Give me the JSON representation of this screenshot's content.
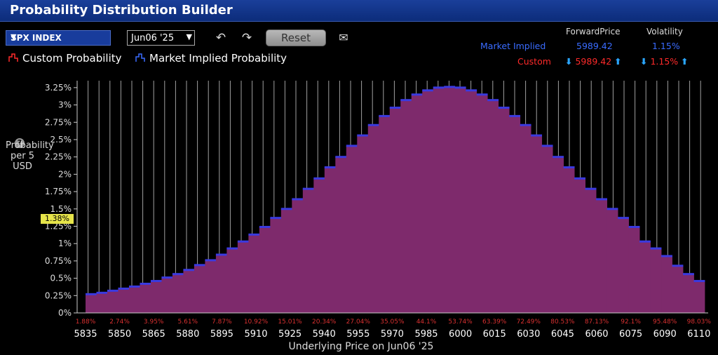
{
  "window": {
    "title": "Probability Distribution Builder"
  },
  "toolbar": {
    "symbol": "SPX INDEX",
    "expiry": "Jun06 '25",
    "reset_label": "Reset"
  },
  "legend": {
    "custom": "Custom Probability",
    "market": "Market Implied Probability"
  },
  "stats": {
    "col_forward": "ForwardPrice",
    "col_vol": "Volatility",
    "market_label": "Market Implied",
    "market_forward": "5989.42",
    "market_vol": "1.15%",
    "custom_label": "Custom",
    "custom_forward": "5989.42",
    "custom_vol": "1.15%"
  },
  "y_axis": {
    "label_line1": "Probability",
    "label_line2": "per 5 USD",
    "marker": "1.38%"
  },
  "colors": {
    "bar": "#7e2a6c",
    "bar_edge": "#9a3a86",
    "cap": "#3a3ae0",
    "grid": "#a0a0a0",
    "cumul": "#d83030"
  },
  "chart_data": {
    "type": "bar",
    "title": "Probability Distribution Builder",
    "xlabel": "Underlying Price on Jun06 '25",
    "ylabel": "Probability per 5 USD",
    "ylim": [
      0,
      3.35
    ],
    "yticks": [
      "0%",
      "0.25%",
      "0.5%",
      "0.75%",
      "1%",
      "1.25%",
      "1.5%",
      "1.75%",
      "2%",
      "2.25%",
      "2.5%",
      "2.75%",
      "3%",
      "3.25%"
    ],
    "x_ticks": [
      "5835",
      "5850",
      "5865",
      "5880",
      "5895",
      "5910",
      "5925",
      "5940",
      "5955",
      "5970",
      "5985",
      "6000",
      "6015",
      "6030",
      "6045",
      "6060",
      "6075",
      "6090",
      "6110"
    ],
    "cumulative_labels": [
      "1.88%",
      "2.74%",
      "3.95%",
      "5.61%",
      "7.87%",
      "10.92%",
      "15.01%",
      "20.34%",
      "27.04%",
      "35.05%",
      "44.1%",
      "53.74%",
      "63.39%",
      "72.49%",
      "80.53%",
      "87.13%",
      "92.1%",
      "95.48%",
      "98.03%"
    ],
    "values": [
      0.27,
      0.29,
      0.32,
      0.35,
      0.38,
      0.42,
      0.46,
      0.51,
      0.56,
      0.62,
      0.69,
      0.76,
      0.84,
      0.93,
      1.03,
      1.13,
      1.24,
      1.37,
      1.5,
      1.64,
      1.79,
      1.94,
      2.1,
      2.25,
      2.41,
      2.56,
      2.71,
      2.84,
      2.96,
      3.07,
      3.15,
      3.21,
      3.25,
      3.26,
      3.25,
      3.21,
      3.15,
      3.07,
      2.96,
      2.84,
      2.71,
      2.56,
      2.41,
      2.25,
      2.1,
      1.94,
      1.79,
      1.64,
      1.5,
      1.37,
      1.24,
      1.03,
      0.93,
      0.82,
      0.68,
      0.56,
      0.46
    ]
  }
}
